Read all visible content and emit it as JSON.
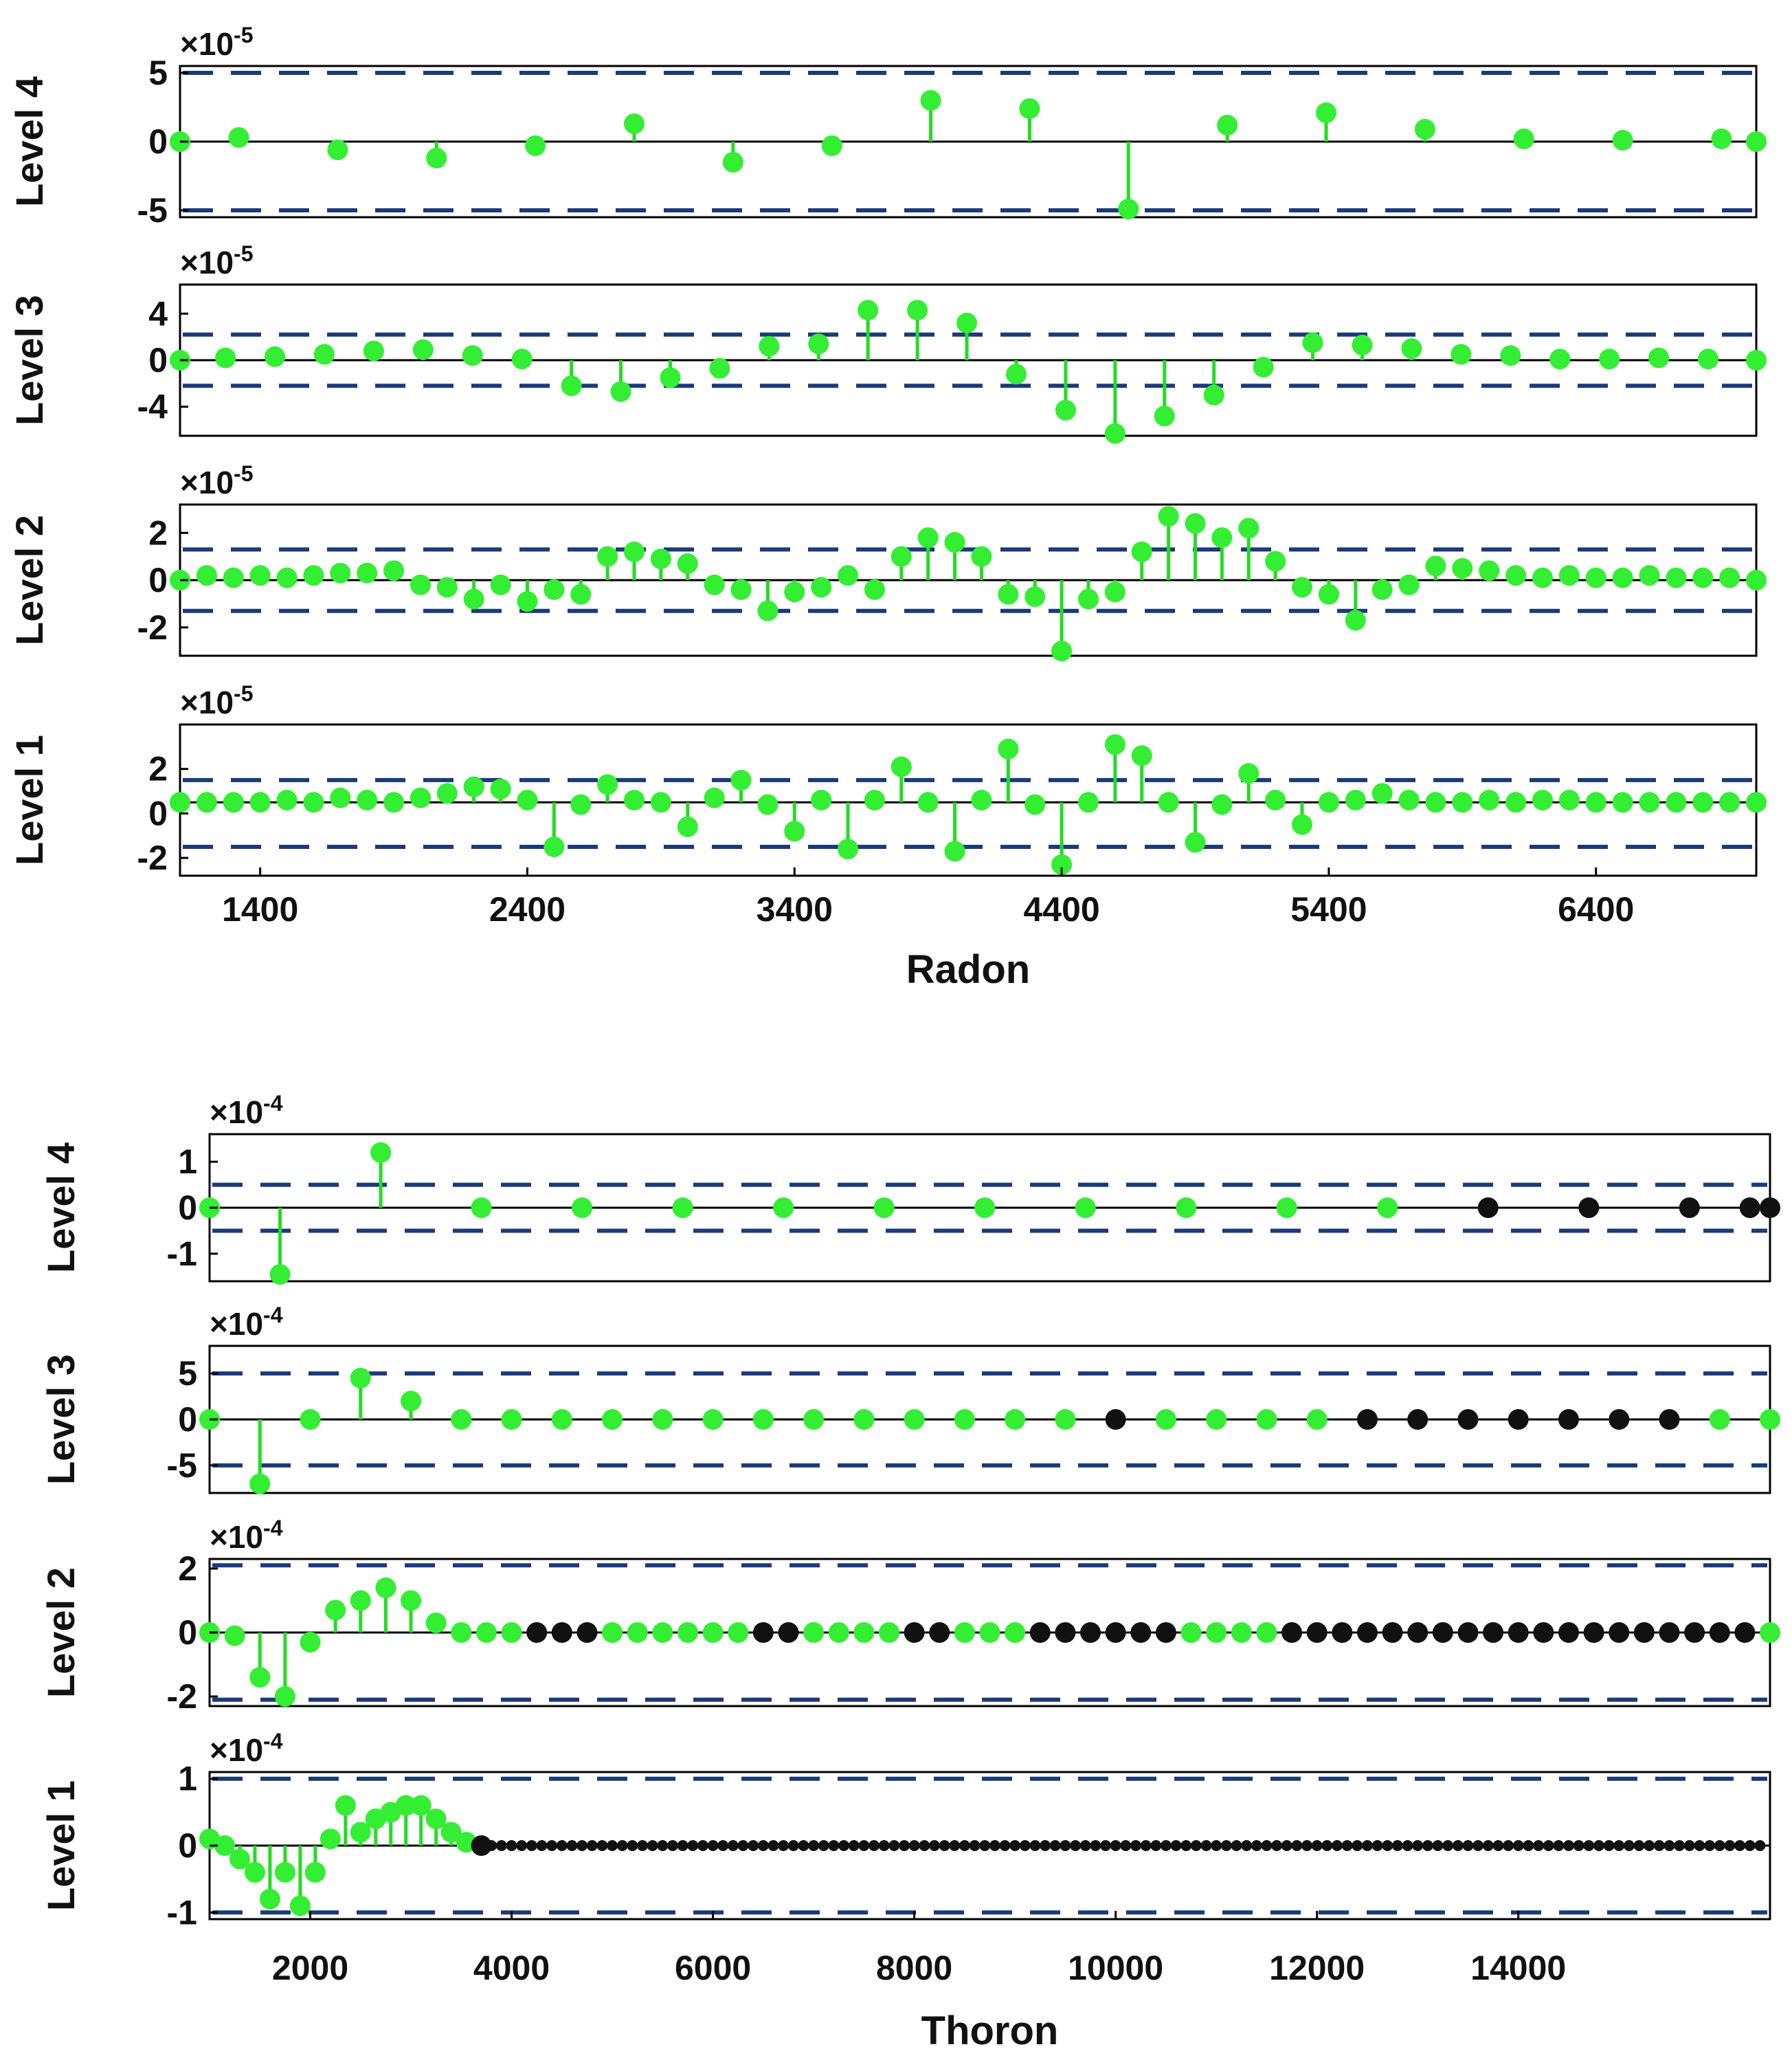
{
  "figures": [
    {
      "xlabel": "Radon",
      "xticks": [
        1400,
        2400,
        3400,
        4400,
        5400,
        6400
      ],
      "panels": [
        {
          "ylabel": "Level 4",
          "exponent": "×10",
          "exponent_power": "-5",
          "yticks": [
            "5",
            "0",
            "-5"
          ]
        },
        {
          "ylabel": "Level 3",
          "exponent": "×10",
          "exponent_power": "-5",
          "yticks": [
            "4",
            "0",
            "-4"
          ]
        },
        {
          "ylabel": "Level 2",
          "exponent": "×10",
          "exponent_power": "-5",
          "yticks": [
            "2",
            "0",
            "-2"
          ]
        },
        {
          "ylabel": "Level 1",
          "exponent": "×10",
          "exponent_power": "-5",
          "yticks": [
            "2",
            "0",
            "-2"
          ]
        }
      ]
    },
    {
      "xlabel": "Thoron",
      "xticks": [
        2000,
        4000,
        6000,
        8000,
        10000,
        12000,
        14000
      ],
      "panels": [
        {
          "ylabel": "Level 4",
          "exponent": "×10",
          "exponent_power": "-4",
          "yticks": [
            "1",
            "0",
            "-1"
          ]
        },
        {
          "ylabel": "Level 3",
          "exponent": "×10",
          "exponent_power": "-4",
          "yticks": [
            "5",
            "0",
            "-5"
          ]
        },
        {
          "ylabel": "Level 2",
          "exponent": "×10",
          "exponent_power": "-4",
          "yticks": [
            "2",
            "0",
            "-2"
          ]
        },
        {
          "ylabel": "Level 1",
          "exponent": "×10",
          "exponent_power": "-4",
          "yticks": [
            "1",
            "0",
            "-1"
          ]
        }
      ]
    }
  ],
  "colors": {
    "stem_green": "#22dd22",
    "marker_green": "#33ee33",
    "marker_black": "#111111",
    "threshold_dash": "#1a3a7a",
    "axis": "#000000"
  },
  "chart_data": [
    {
      "type": "stem",
      "title": "",
      "xlabel": "Radon",
      "xlim": [
        1100,
        7000
      ],
      "series": [
        {
          "ylabel": "Level 4",
          "scale": "1e-5",
          "ylim": [
            -5.5,
            5.5
          ],
          "threshold": 5.0,
          "x": [
            1100,
            1320,
            1690,
            2060,
            2430,
            2800,
            3170,
            3540,
            3910,
            4280,
            4650,
            5020,
            5390,
            5760,
            6130,
            6500,
            6870,
            7000
          ],
          "y": [
            0,
            0.3,
            -0.6,
            -1.2,
            -0.3,
            1.3,
            -1.5,
            -0.3,
            3.0,
            2.4,
            -4.9,
            1.2,
            2.1,
            0.9,
            0.2,
            0.1,
            0.2,
            0
          ]
        },
        {
          "ylabel": "Level 3",
          "scale": "1e-5",
          "ylim": [
            -6.5,
            6.5
          ],
          "threshold": 2.2,
          "x": [
            1100,
            1270,
            1455,
            1640,
            1825,
            2010,
            2195,
            2380,
            2565,
            2750,
            2935,
            3120,
            3305,
            3490,
            3675,
            3860,
            4045,
            4230,
            4415,
            4600,
            4785,
            4970,
            5155,
            5340,
            5525,
            5710,
            5895,
            6080,
            6265,
            6450,
            6635,
            6820,
            7000
          ],
          "y": [
            0,
            0.2,
            0.3,
            0.5,
            0.8,
            0.9,
            0.4,
            0.1,
            -2.2,
            -2.7,
            -1.5,
            -0.7,
            1.2,
            1.4,
            4.3,
            4.3,
            3.2,
            -1.2,
            -4.3,
            -6.3,
            -4.8,
            -3.0,
            -0.6,
            1.5,
            1.3,
            1.0,
            0.5,
            0.4,
            0.1,
            0.1,
            0.2,
            0.1,
            0
          ]
        },
        {
          "ylabel": "Level 2",
          "scale": "1e-5",
          "ylim": [
            -3.2,
            3.2
          ],
          "threshold": 1.3,
          "x": [
            1100,
            1200,
            1300,
            1400,
            1500,
            1600,
            1700,
            1800,
            1900,
            2000,
            2100,
            2200,
            2300,
            2400,
            2500,
            2600,
            2700,
            2800,
            2900,
            3000,
            3100,
            3200,
            3300,
            3400,
            3500,
            3600,
            3700,
            3800,
            3900,
            4000,
            4100,
            4200,
            4300,
            4400,
            4500,
            4600,
            4700,
            4800,
            4900,
            5000,
            5100,
            5200,
            5300,
            5400,
            5500,
            5600,
            5700,
            5800,
            5900,
            6000,
            6100,
            6200,
            6300,
            6400,
            6500,
            6600,
            6700,
            6800,
            6900,
            7000
          ],
          "y": [
            0,
            0.2,
            0.1,
            0.2,
            0.1,
            0.2,
            0.3,
            0.3,
            0.4,
            -0.2,
            -0.3,
            -0.8,
            -0.2,
            -0.9,
            -0.4,
            -0.6,
            1.0,
            1.2,
            0.9,
            0.7,
            -0.2,
            -0.4,
            -1.3,
            -0.5,
            -0.3,
            0.2,
            -0.4,
            1.0,
            1.8,
            1.6,
            1.0,
            -0.6,
            -0.7,
            -3.0,
            -0.8,
            -0.5,
            1.2,
            2.7,
            2.4,
            1.8,
            2.2,
            0.8,
            -0.3,
            -0.6,
            -1.7,
            -0.4,
            -0.2,
            0.6,
            0.5,
            0.4,
            0.2,
            0.1,
            0.2,
            0.1,
            0.1,
            0.2,
            0.1,
            0.1,
            0.1,
            0
          ]
        },
        {
          "ylabel": "Level 1",
          "scale": "1e-5",
          "ylim": [
            -2.8,
            4.0
          ],
          "threshold": 1.5,
          "baseline": 0.5,
          "x": [
            1100,
            1200,
            1300,
            1400,
            1500,
            1600,
            1700,
            1800,
            1900,
            2000,
            2100,
            2200,
            2300,
            2400,
            2500,
            2600,
            2700,
            2800,
            2900,
            3000,
            3100,
            3200,
            3300,
            3400,
            3500,
            3600,
            3700,
            3800,
            3900,
            4000,
            4100,
            4200,
            4300,
            4400,
            4500,
            4600,
            4700,
            4800,
            4900,
            5000,
            5100,
            5200,
            5300,
            5400,
            5500,
            5600,
            5700,
            5800,
            5900,
            6000,
            6100,
            6200,
            6300,
            6400,
            6500,
            6600,
            6700,
            6800,
            6900,
            7000
          ],
          "y": [
            0.5,
            0.5,
            0.5,
            0.5,
            0.6,
            0.5,
            0.7,
            0.6,
            0.5,
            0.7,
            0.9,
            1.2,
            1.1,
            0.6,
            -1.5,
            0.4,
            1.3,
            0.6,
            0.5,
            -0.6,
            0.7,
            1.5,
            0.4,
            -0.8,
            0.6,
            -1.6,
            0.6,
            2.1,
            0.5,
            -1.7,
            0.6,
            2.9,
            0.4,
            -2.3,
            0.5,
            3.1,
            2.6,
            0.5,
            -1.3,
            0.4,
            1.8,
            0.6,
            -0.5,
            0.5,
            0.6,
            0.9,
            0.6,
            0.5,
            0.5,
            0.6,
            0.5,
            0.6,
            0.6,
            0.5,
            0.5,
            0.5,
            0.5,
            0.5,
            0.5,
            0.5
          ]
        }
      ]
    },
    {
      "type": "stem",
      "title": "",
      "xlabel": "Thoron",
      "xlim": [
        1000,
        16500
      ],
      "series": [
        {
          "ylabel": "Level 4",
          "scale": "1e-4",
          "ylim": [
            -1.6,
            1.6
          ],
          "threshold": 0.5,
          "x": [
            1000,
            1700,
            2700,
            3700,
            4700,
            5700,
            6700,
            7700,
            8700,
            9700,
            10700,
            11700,
            12700,
            13700,
            14700,
            15700,
            16300,
            16500
          ],
          "y": [
            0,
            -1.45,
            1.2,
            0,
            0,
            0,
            0,
            0,
            0,
            0,
            0,
            0,
            0,
            0,
            0,
            0,
            0,
            0
          ],
          "marker_black_from_x": 13700
        },
        {
          "ylabel": "Level 3",
          "scale": "1e-4",
          "ylim": [
            -8.0,
            8.0
          ],
          "threshold": 5.0,
          "x": [
            1000,
            1500,
            2000,
            2500,
            3000,
            3500,
            4000,
            4500,
            5000,
            5500,
            6000,
            6500,
            7000,
            7500,
            8000,
            8500,
            9000,
            9500,
            10000,
            10500,
            11000,
            11500,
            12000,
            12500,
            13000,
            13500,
            14000,
            14500,
            15000,
            15500,
            16000,
            16500
          ],
          "y": [
            0,
            -7.0,
            0,
            4.5,
            2.0,
            0,
            0,
            0,
            0,
            0,
            0,
            0,
            0,
            0,
            0,
            0,
            0,
            0,
            0,
            0,
            0,
            0,
            0,
            0,
            0,
            0,
            0,
            0,
            0,
            0,
            0,
            0
          ],
          "marker_black_x": [
            10000,
            12500,
            13000,
            13500,
            14000,
            14500,
            15000,
            15500
          ]
        },
        {
          "ylabel": "Level 2",
          "scale": "1e-4",
          "ylim": [
            -2.3,
            2.3
          ],
          "threshold": 2.1,
          "x": [
            1000,
            1250,
            1500,
            1750,
            2000,
            2250,
            2500,
            2750,
            3000,
            3250,
            3500,
            3750,
            4000,
            4250,
            4500,
            4750,
            5000,
            5250,
            5500,
            5750,
            6000,
            6250,
            6500,
            6750,
            7000,
            7250,
            7500,
            7750,
            8000,
            8250,
            8500,
            8750,
            9000,
            9250,
            9500,
            9750,
            10000,
            10250,
            10500,
            10750,
            11000,
            11250,
            11500,
            11750,
            12000,
            12250,
            12500,
            12750,
            13000,
            13250,
            13500,
            13750,
            14000,
            14250,
            14500,
            14750,
            15000,
            15250,
            15500,
            15750,
            16000,
            16250,
            16500
          ],
          "y": [
            0,
            -0.1,
            -1.4,
            -2.0,
            -0.3,
            0.7,
            1.0,
            1.4,
            1.0,
            0.3,
            0,
            0,
            0,
            0,
            0,
            0,
            0,
            0,
            0,
            0,
            0,
            0,
            0,
            0,
            0,
            0,
            0,
            0,
            0,
            0,
            0,
            0,
            0,
            0,
            0,
            0,
            0,
            0,
            0,
            0,
            0,
            0,
            0,
            0,
            0,
            0,
            0,
            0,
            0,
            0,
            0,
            0,
            0,
            0,
            0,
            0,
            0,
            0,
            0,
            0,
            0,
            0,
            0
          ],
          "marker_black_ranges": [
            [
              4250,
              4750
            ],
            [
              6500,
              6750
            ],
            [
              8000,
              8250
            ],
            [
              9250,
              10500
            ],
            [
              11750,
              16250
            ]
          ]
        },
        {
          "ylabel": "Level 1",
          "scale": "1e-4",
          "ylim": [
            -1.1,
            1.1
          ],
          "threshold": 1.0,
          "x": [
            1000,
            1150,
            1300,
            1450,
            1600,
            1750,
            1900,
            2050,
            2200,
            2350,
            2500,
            2650,
            2800,
            2950,
            3100,
            3250,
            3400,
            3550,
            3700
          ],
          "y": [
            0.1,
            0,
            -0.2,
            -0.4,
            -0.8,
            -0.4,
            -0.9,
            -0.4,
            0.1,
            0.6,
            0.2,
            0.4,
            0.5,
            0.6,
            0.6,
            0.4,
            0.2,
            0.05,
            0
          ],
          "marker_black_from_x": 3700,
          "dense_step": 100
        }
      ]
    }
  ]
}
